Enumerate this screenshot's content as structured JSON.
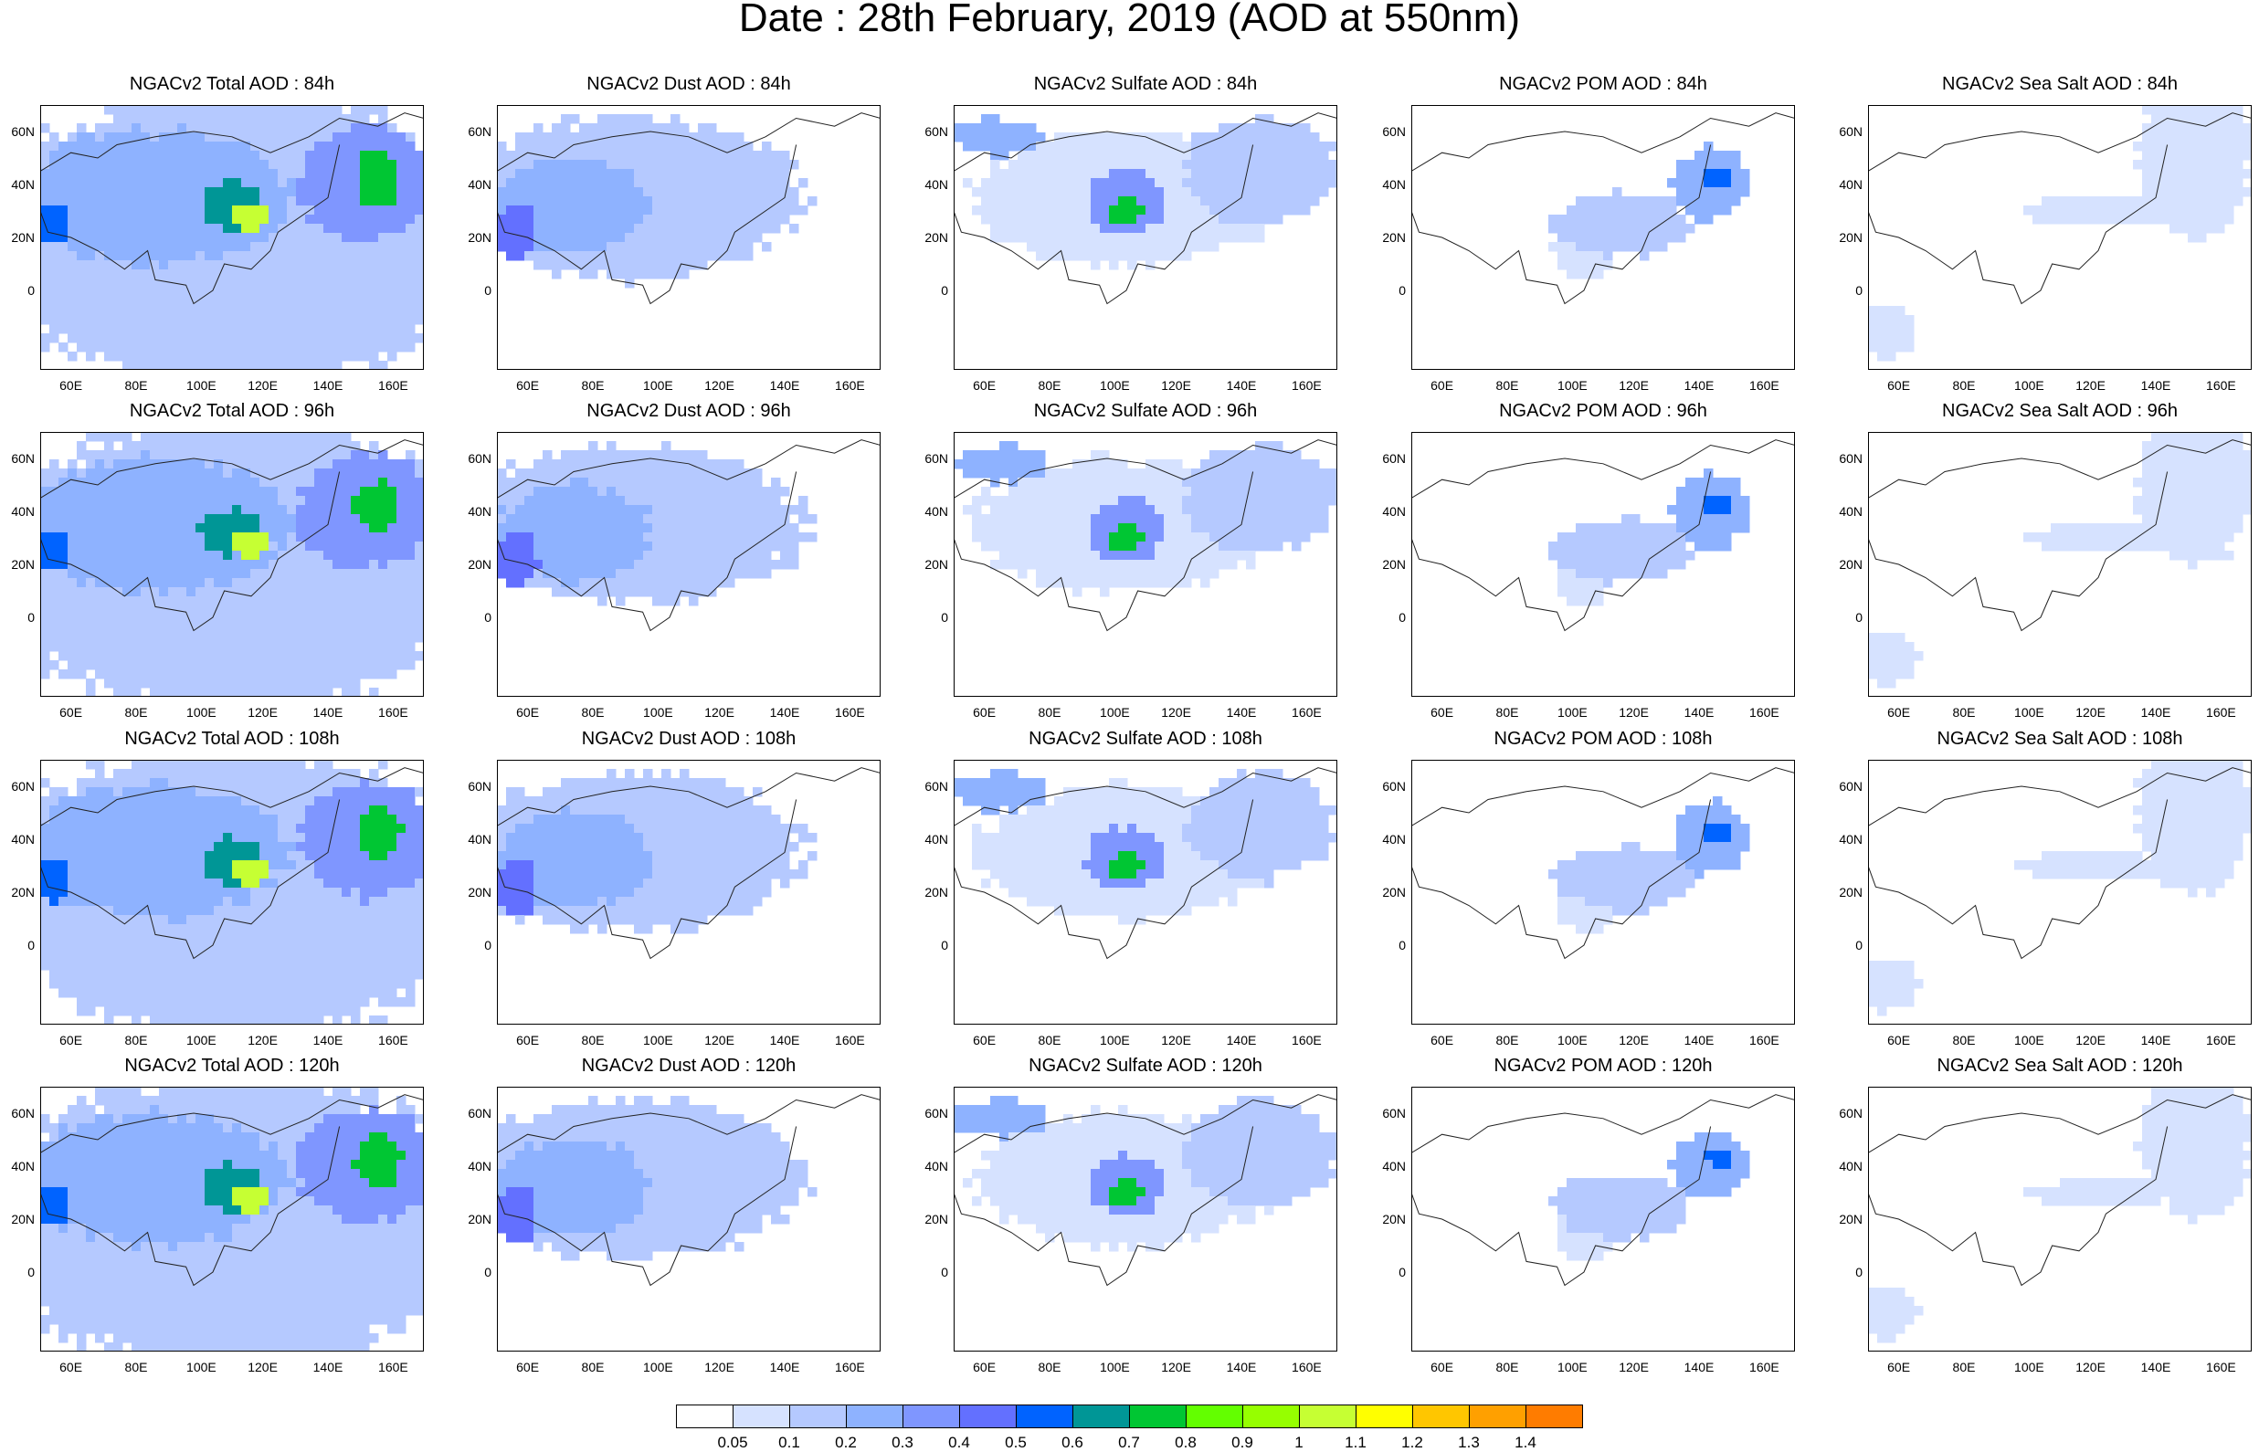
{
  "title": "Date : 28th February, 2019 (AOD at 550nm)",
  "y_ticks": [
    "60N",
    "40N",
    "20N",
    "0"
  ],
  "x_ticks": [
    "60E",
    "80E",
    "100E",
    "120E",
    "140E",
    "160E"
  ],
  "colorbar": {
    "labels": [
      "0.05",
      "0.1",
      "0.2",
      "0.3",
      "0.4",
      "0.5",
      "0.6",
      "0.7",
      "0.8",
      "0.9",
      "1",
      "1.1",
      "1.2",
      "1.3",
      "1.4"
    ],
    "colors": [
      "#ffffff",
      "#d6e2ff",
      "#b5c9ff",
      "#8eb2ff",
      "#7f96ff",
      "#6370ff",
      "#0063ff",
      "#009696",
      "#00c633",
      "#63ff00",
      "#96ff00",
      "#c6ff33",
      "#ffff00",
      "#ffc600",
      "#ffa000",
      "#ff7c00",
      "#ff1900"
    ]
  },
  "columns": [
    "Total",
    "Dust",
    "Sulfate",
    "POM",
    "Sea Salt"
  ],
  "rows": [
    "84h",
    "96h",
    "108h",
    "120h"
  ],
  "panels": [
    [
      "NGACv2 Total AOD : 84h",
      "NGACv2 Dust AOD : 84h",
      "NGACv2 Sulfate AOD : 84h",
      "NGACv2 POM AOD : 84h",
      "NGACv2 Sea Salt AOD : 84h"
    ],
    [
      "NGACv2 Total AOD : 96h",
      "NGACv2 Dust AOD : 96h",
      "NGACv2 Sulfate AOD : 96h",
      "NGACv2 POM AOD : 96h",
      "NGACv2 Sea Salt AOD : 96h"
    ],
    [
      "NGACv2 Total AOD : 108h",
      "NGACv2 Dust AOD : 108h",
      "NGACv2 Sulfate AOD : 108h",
      "NGACv2 POM AOD : 108h",
      "NGACv2 Sea Salt AOD : 108h"
    ],
    [
      "NGACv2 Total AOD : 120h",
      "NGACv2 Dust AOD : 120h",
      "NGACv2 Sulfate AOD : 120h",
      "NGACv2 POM AOD : 120h",
      "NGACv2 Sea Salt  AOD : 120h"
    ]
  ]
}
